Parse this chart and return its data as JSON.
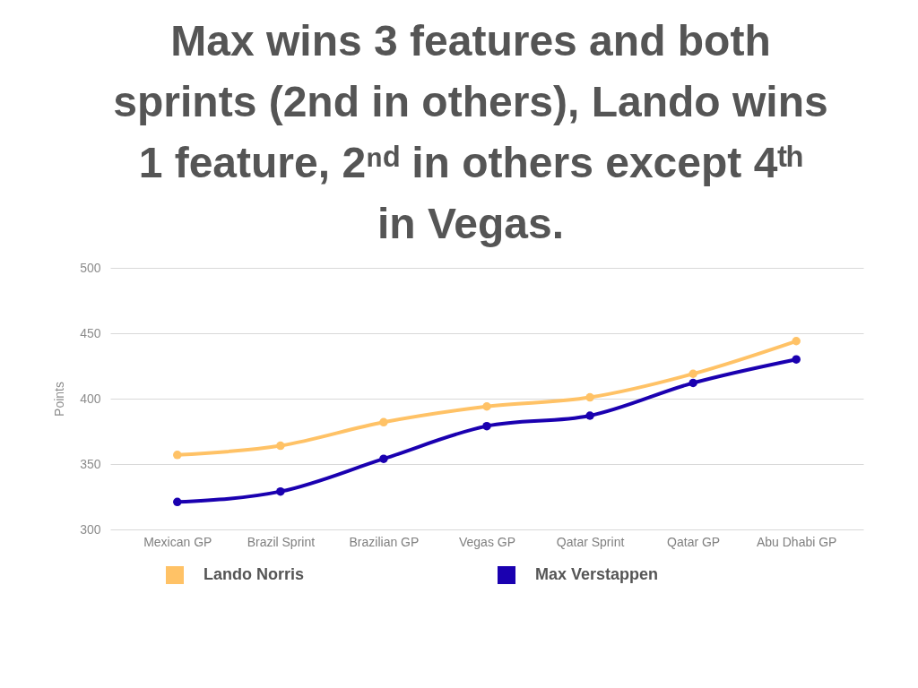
{
  "chart_data": {
    "type": "line",
    "title": "Max wins 3 features and both\nsprints (2nd in others), Lando wins\n1 feature, 2ⁿᵈ in others except 4ᵗʰ\nin Vegas.",
    "ylabel": "Points",
    "categories": [
      "Mexican GP",
      "Brazil Sprint",
      "Brazilian GP",
      "Vegas GP",
      "Qatar Sprint",
      "Qatar GP",
      "Abu Dhabi GP"
    ],
    "series": [
      {
        "name": "Lando Norris",
        "color": "#ffc266",
        "values": [
          357,
          364,
          382,
          394,
          401,
          419,
          444
        ]
      },
      {
        "name": "Max Verstappen",
        "color": "#1a00b0",
        "values": [
          321,
          329,
          354,
          379,
          387,
          412,
          430
        ]
      }
    ],
    "ylim": [
      300,
      500
    ],
    "yticks": [
      300,
      350,
      400,
      450,
      500
    ],
    "grid": "y",
    "legend": "bottom",
    "marker": "circle",
    "line_style": "solid"
  }
}
